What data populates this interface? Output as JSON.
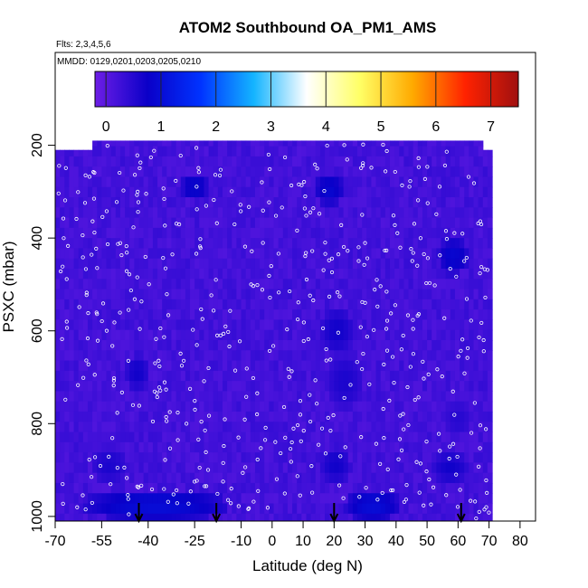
{
  "chart_data": {
    "type": "heatmap",
    "title": "ATOM2 Southbound OA_PM1_AMS",
    "flights_note": "Flts: 2,3,4,5,6",
    "dates_note": "MMDD: 0129,0201,0203,0205,0210",
    "xlabel": "Latitude (deg N)",
    "ylabel": "PSXC (mbar)",
    "xlim": [
      -70,
      85
    ],
    "ylim": [
      1010,
      0
    ],
    "x_ticks": [
      -70,
      -55,
      -40,
      -25,
      -10,
      0,
      10,
      20,
      30,
      40,
      50,
      60,
      70,
      80
    ],
    "y_ticks": [
      200,
      400,
      600,
      800,
      1000
    ],
    "colorbar": {
      "range": [
        -0.2,
        7.5
      ],
      "ticks": [
        0,
        1,
        2,
        3,
        4,
        5,
        6,
        7
      ],
      "stops": [
        "#6e1ee6",
        "#0a00c8",
        "#0033ff",
        "#14b4ff",
        "#ffffff",
        "#ffff66",
        "#ffaa00",
        "#ff2200",
        "#a01010"
      ]
    },
    "data_extent": {
      "lat_min": -70,
      "lat_max": 71,
      "p_top": 190,
      "p_bottom": 1010
    },
    "arrows_lat": [
      -43,
      -18,
      20,
      61
    ],
    "low_value_regions": [
      {
        "lat": [
          -57,
          -48
        ],
        "p": [
          860,
          920
        ],
        "value": 0.6
      },
      {
        "lat": [
          -46,
          -41
        ],
        "p": [
          660,
          720
        ],
        "value": 0.7
      },
      {
        "lat": [
          19,
          28
        ],
        "p": [
          660,
          760
        ],
        "value": 0.6
      },
      {
        "lat": [
          17,
          25
        ],
        "p": [
          560,
          640
        ],
        "value": 0.7
      },
      {
        "lat": [
          57,
          63
        ],
        "p": [
          760,
          820
        ],
        "value": 0.5
      },
      {
        "lat": [
          53,
          62
        ],
        "p": [
          870,
          920
        ],
        "value": 0.7
      },
      {
        "lat": [
          17,
          24
        ],
        "p": [
          860,
          920
        ],
        "value": 0.7
      },
      {
        "lat": [
          -28,
          -22
        ],
        "p": [
          270,
          310
        ],
        "value": 0.9
      },
      {
        "lat": [
          15,
          22
        ],
        "p": [
          270,
          320
        ],
        "value": 0.9
      },
      {
        "lat": [
          55,
          62
        ],
        "p": [
          410,
          470
        ],
        "value": 0.9
      },
      {
        "lat": [
          -60,
          -15
        ],
        "p": [
          950,
          1005
        ],
        "value": 1.0
      },
      {
        "lat": [
          25,
          40
        ],
        "p": [
          950,
          1005
        ],
        "value": 1.0
      }
    ],
    "baseline_value": 0.1
  }
}
